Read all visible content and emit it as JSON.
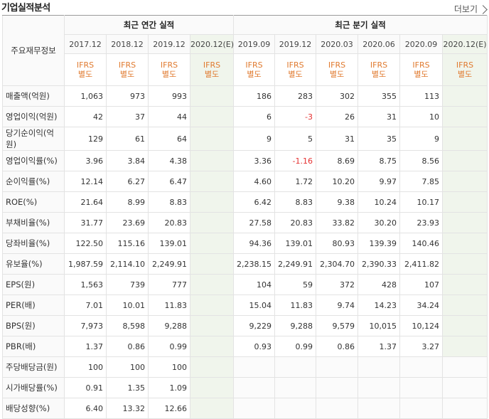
{
  "title": "기업실적분석",
  "more_label": "더보기",
  "corner_label": "주요재무정보",
  "groups": {
    "annual": "최근 연간 실적",
    "quarterly": "최근 분기 실적"
  },
  "periods": [
    "2017.12",
    "2018.12",
    "2019.12",
    "2020.12(E)",
    "2019.09",
    "2019.12",
    "2020.03",
    "2020.06",
    "2020.09",
    "2020.12(E)"
  ],
  "estimate_cols": [
    3,
    9
  ],
  "ifrs_label": [
    "IFRS",
    "별도"
  ],
  "rows": [
    {
      "label": "매출액(억원)",
      "values": [
        "1,063",
        "973",
        "993",
        "",
        "186",
        "283",
        "302",
        "355",
        "113",
        ""
      ],
      "group_start": true
    },
    {
      "label": "영업이익(억원)",
      "values": [
        "42",
        "37",
        "44",
        "",
        "6",
        "-3",
        "26",
        "31",
        "10",
        ""
      ]
    },
    {
      "label": "당기순이익(억원)",
      "values": [
        "129",
        "61",
        "64",
        "",
        "9",
        "5",
        "31",
        "35",
        "9",
        ""
      ]
    },
    {
      "label": "영업이익률(%)",
      "values": [
        "3.96",
        "3.84",
        "4.38",
        "",
        "3.36",
        "-1.16",
        "8.69",
        "8.75",
        "8.56",
        ""
      ],
      "group_start": true
    },
    {
      "label": "순이익률(%)",
      "values": [
        "12.14",
        "6.27",
        "6.47",
        "",
        "4.60",
        "1.72",
        "10.20",
        "9.97",
        "7.85",
        ""
      ]
    },
    {
      "label": "ROE(%)",
      "values": [
        "21.64",
        "8.99",
        "8.83",
        "",
        "6.42",
        "8.83",
        "9.38",
        "10.24",
        "10.17",
        ""
      ]
    },
    {
      "label": "부채비율(%)",
      "values": [
        "31.77",
        "23.69",
        "20.83",
        "",
        "27.58",
        "20.83",
        "33.82",
        "30.20",
        "23.93",
        ""
      ],
      "group_start": true
    },
    {
      "label": "당좌비율(%)",
      "values": [
        "122.50",
        "115.16",
        "139.01",
        "",
        "94.36",
        "139.01",
        "80.93",
        "139.39",
        "140.46",
        ""
      ]
    },
    {
      "label": "유보율(%)",
      "values": [
        "1,987.59",
        "2,114.10",
        "2,249.91",
        "",
        "2,238.15",
        "2,249.91",
        "2,304.70",
        "2,390.33",
        "2,411.82",
        ""
      ]
    },
    {
      "label": "EPS(원)",
      "values": [
        "1,563",
        "739",
        "777",
        "",
        "104",
        "59",
        "372",
        "428",
        "107",
        ""
      ],
      "group_start": true
    },
    {
      "label": "PER(배)",
      "values": [
        "7.01",
        "10.01",
        "11.83",
        "",
        "15.04",
        "11.83",
        "9.74",
        "14.23",
        "34.24",
        ""
      ]
    },
    {
      "label": "BPS(원)",
      "values": [
        "7,973",
        "8,598",
        "9,288",
        "",
        "9,229",
        "9,288",
        "9,579",
        "10,015",
        "10,124",
        ""
      ]
    },
    {
      "label": "PBR(배)",
      "values": [
        "1.37",
        "0.86",
        "0.99",
        "",
        "0.93",
        "0.99",
        "0.86",
        "1.37",
        "3.27",
        ""
      ]
    },
    {
      "label": "주당배당금(원)",
      "values": [
        "100",
        "100",
        "100",
        "",
        "",
        "",
        "",
        "",
        "",
        ""
      ],
      "group_start": true,
      "quarter_blank": true
    },
    {
      "label": "시가배당률(%)",
      "values": [
        "0.91",
        "1.35",
        "1.09",
        "",
        "",
        "",
        "",
        "",
        "",
        ""
      ],
      "quarter_blank": true
    },
    {
      "label": "배당성향(%)",
      "values": [
        "6.40",
        "13.32",
        "12.66",
        "",
        "",
        "",
        "",
        "",
        "",
        ""
      ],
      "quarter_blank": true
    }
  ],
  "colors": {
    "negative": "#e53131",
    "ifrs": "#e07a2f",
    "estimate_bg": "#f0f5ec"
  }
}
